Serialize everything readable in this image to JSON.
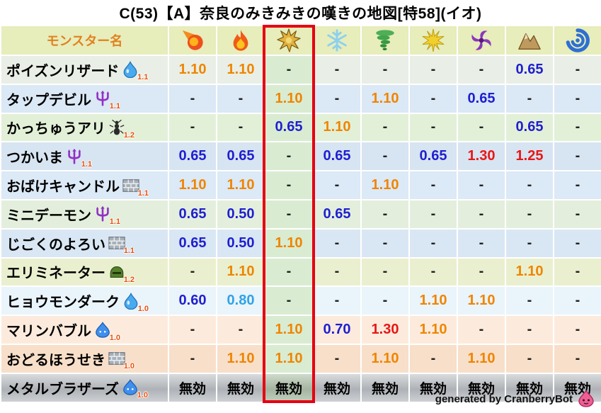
{
  "title": "C(53)【A】奈良のみきみきの嘆きの地図[特58](イオ)",
  "footer": {
    "text": "generated by CranberryBot",
    "icon": "pink-slime-icon"
  },
  "colors": {
    "value_up": "#ef8500",
    "value_down": "#1f1fd0",
    "value_down_light": "#2fa3e8",
    "value_high": "#e81616",
    "header_bg": "#e7edbb",
    "header_text": "#e0821e",
    "highlight_border": "#e60012",
    "highlight_cell_bg": "#d9ecd2"
  },
  "chart_data": {
    "type": "table",
    "title": "C(53)【A】奈良のみきみきの嘆きの地図[特58](イオ)",
    "name_header": "モンスター名",
    "element_columns": [
      "fireball-icon",
      "flame-icon",
      "explosion-icon",
      "snowflake-icon",
      "tornado-icon",
      "spark-icon",
      "dark-swirl-icon",
      "mountain-icon",
      "water-swirl-icon"
    ],
    "highlight_column_index": 2,
    "rows": [
      {
        "name": "ポイズンリザード",
        "icon": "water-drop-icon",
        "level": "1.1",
        "bg": "#e9efe6",
        "values": [
          "1.10",
          "1.10",
          "-",
          "-",
          "-",
          "-",
          "-",
          "0.65",
          "-"
        ],
        "colors": [
          "up",
          "up",
          "dash",
          "dash",
          "dash",
          "dash",
          "dash",
          "down",
          "dash"
        ]
      },
      {
        "name": "タップデビル",
        "icon": "demon-icon",
        "level": "1.1",
        "bg": "#dbe8f5",
        "values": [
          "-",
          "-",
          "1.10",
          "-",
          "1.10",
          "-",
          "0.65",
          "-",
          "-"
        ],
        "colors": [
          "dash",
          "dash",
          "up",
          "dash",
          "up",
          "dash",
          "down",
          "dash",
          "dash"
        ]
      },
      {
        "name": "かっちゅうアリ",
        "icon": "ant-icon",
        "level": "1.2",
        "bg": "#e3f0d8",
        "values": [
          "-",
          "-",
          "0.65",
          "1.10",
          "-",
          "-",
          "-",
          "0.65",
          "-"
        ],
        "colors": [
          "dash",
          "dash",
          "down",
          "up",
          "dash",
          "dash",
          "dash",
          "down",
          "dash"
        ]
      },
      {
        "name": "つかいま",
        "icon": "demon-icon",
        "level": "1.1",
        "bg": "#d7e4f2",
        "values": [
          "0.65",
          "0.65",
          "-",
          "0.65",
          "-",
          "0.65",
          "1.30",
          "1.25",
          "-"
        ],
        "colors": [
          "down",
          "down",
          "dash",
          "down",
          "dash",
          "down",
          "high",
          "high",
          "dash"
        ]
      },
      {
        "name": "おばけキャンドル",
        "icon": "brick-icon",
        "level": "1.1",
        "bg": "#dce9f6",
        "values": [
          "1.10",
          "1.10",
          "-",
          "-",
          "1.10",
          "-",
          "-",
          "-",
          "-"
        ],
        "colors": [
          "up",
          "up",
          "dash",
          "dash",
          "up",
          "dash",
          "dash",
          "dash",
          "dash"
        ]
      },
      {
        "name": "ミニデーモン",
        "icon": "demon-icon",
        "level": "1.1",
        "bg": "#e3efdc",
        "values": [
          "0.65",
          "0.50",
          "-",
          "0.65",
          "-",
          "-",
          "-",
          "-",
          "-"
        ],
        "colors": [
          "down",
          "down",
          "dash",
          "down",
          "dash",
          "dash",
          "dash",
          "dash",
          "dash"
        ]
      },
      {
        "name": "じごくのよろい",
        "icon": "brick-icon",
        "level": "1.1",
        "bg": "#d9e7f4",
        "values": [
          "0.65",
          "0.50",
          "1.10",
          "-",
          "-",
          "-",
          "-",
          "-",
          "-"
        ],
        "colors": [
          "down",
          "down",
          "up",
          "dash",
          "dash",
          "dash",
          "dash",
          "dash",
          "dash"
        ]
      },
      {
        "name": "エリミネーター",
        "icon": "helmet-icon",
        "level": "1.2",
        "bg": "#eaf0cf",
        "values": [
          "-",
          "1.10",
          "-",
          "-",
          "-",
          "-",
          "-",
          "1.10",
          "-"
        ],
        "colors": [
          "dash",
          "up",
          "dash",
          "dash",
          "dash",
          "dash",
          "dash",
          "up",
          "dash"
        ]
      },
      {
        "name": "ヒョウモンダーク",
        "icon": "water-drop-icon",
        "level": "1.0",
        "bg": "#eaf4fb",
        "values": [
          "0.60",
          "0.80",
          "-",
          "-",
          "-",
          "1.10",
          "1.10",
          "-",
          "-"
        ],
        "colors": [
          "down",
          "down-light",
          "dash",
          "dash",
          "dash",
          "up",
          "up",
          "dash",
          "dash"
        ]
      },
      {
        "name": "マリンバブル",
        "icon": "slime-icon",
        "level": "1.0",
        "bg": "#fcebdc",
        "values": [
          "-",
          "-",
          "1.10",
          "0.70",
          "1.30",
          "1.10",
          "-",
          "-",
          "-"
        ],
        "colors": [
          "dash",
          "dash",
          "up",
          "down",
          "high",
          "up",
          "dash",
          "dash",
          "dash"
        ]
      },
      {
        "name": "おどるほうせき",
        "icon": "brick-icon",
        "level": "1.0",
        "bg": "#f8dfc9",
        "values": [
          "-",
          "1.10",
          "1.10",
          "-",
          "1.10",
          "-",
          "1.10",
          "-",
          "-"
        ],
        "colors": [
          "dash",
          "up",
          "up",
          "dash",
          "up",
          "dash",
          "up",
          "dash",
          "dash"
        ]
      },
      {
        "name": "メタルブラザーズ",
        "icon": "slime-icon",
        "level": "1.0",
        "bg": "metal",
        "values": [
          "無効",
          "無効",
          "無効",
          "無効",
          "無効",
          "無効",
          "無効",
          "無効",
          "無効"
        ],
        "colors": [
          "immune",
          "immune",
          "immune",
          "immune",
          "immune",
          "immune",
          "immune",
          "immune",
          "immune"
        ]
      }
    ]
  }
}
